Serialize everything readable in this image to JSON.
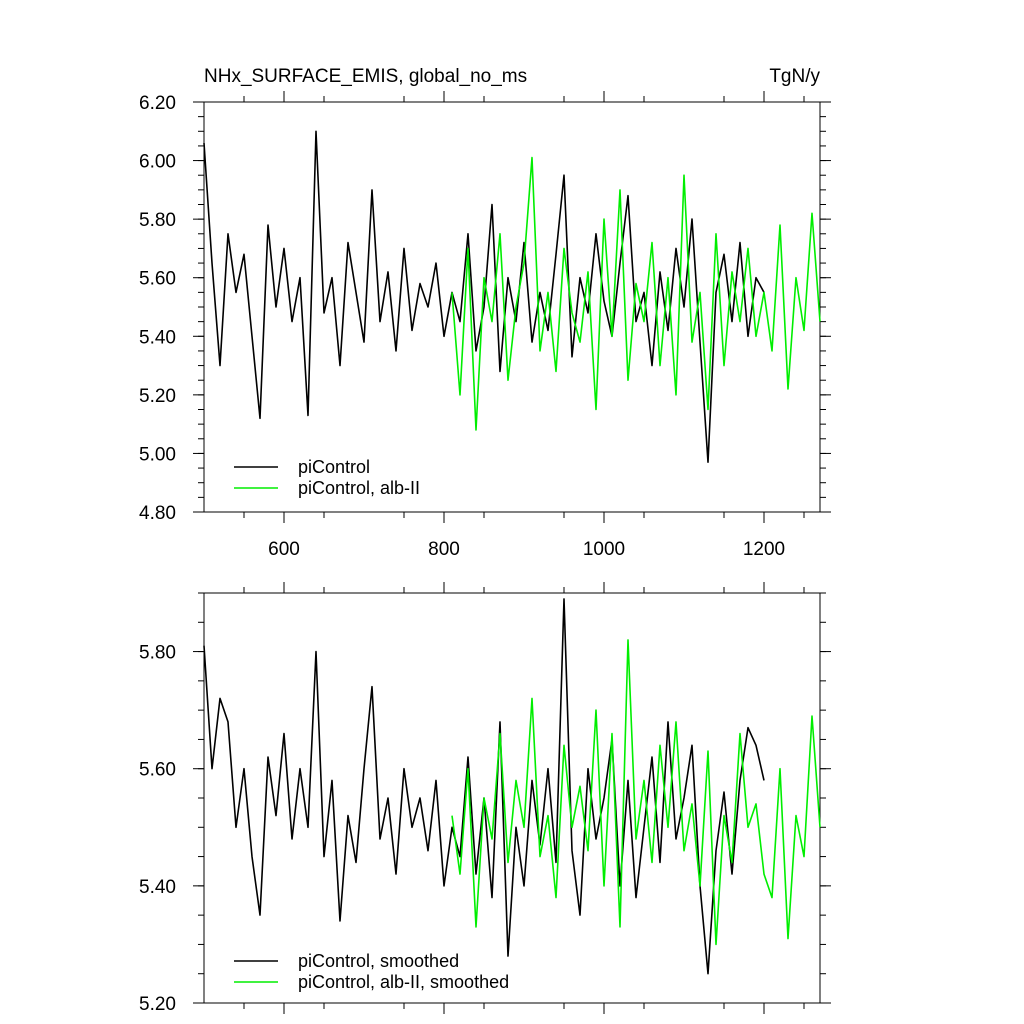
{
  "figure": {
    "title_left": "NHx_SURFACE_EMIS, global_no_ms",
    "title_right": "TgN/y"
  },
  "colors": {
    "black": "#000000",
    "green": "#00ee00"
  },
  "chart_data": [
    {
      "type": "line",
      "title": "NHx_SURFACE_EMIS, global_no_ms",
      "units": "TgN/y",
      "xlim": [
        500,
        1270
      ],
      "ylim": [
        4.8,
        6.2
      ],
      "xticks": [
        600,
        800,
        1000,
        1200
      ],
      "xtick_labels": [
        "600",
        "800",
        "1000",
        "1200"
      ],
      "yticks": [
        4.8,
        5.0,
        5.2,
        5.4,
        5.6,
        5.8,
        6.0,
        6.2
      ],
      "ytick_labels": [
        "4.80",
        "5.00",
        "5.20",
        "5.40",
        "5.60",
        "5.80",
        "6.00",
        "6.20"
      ],
      "legend": "bottom-left",
      "series": [
        {
          "name": "piControl",
          "color": "#000000",
          "x": [
            500,
            510,
            520,
            530,
            540,
            550,
            560,
            570,
            580,
            590,
            600,
            610,
            620,
            630,
            640,
            650,
            660,
            670,
            680,
            690,
            700,
            710,
            720,
            730,
            740,
            750,
            760,
            770,
            780,
            790,
            800,
            810,
            820,
            830,
            840,
            850,
            860,
            870,
            880,
            890,
            900,
            910,
            920,
            930,
            940,
            950,
            960,
            970,
            980,
            990,
            1000,
            1010,
            1020,
            1030,
            1040,
            1050,
            1060,
            1070,
            1080,
            1090,
            1100,
            1110,
            1120,
            1130,
            1140,
            1150,
            1160,
            1170,
            1180,
            1190,
            1200
          ],
          "y": [
            6.06,
            5.65,
            5.3,
            5.75,
            5.55,
            5.68,
            5.4,
            5.12,
            5.78,
            5.5,
            5.7,
            5.45,
            5.6,
            5.13,
            6.1,
            5.48,
            5.6,
            5.3,
            5.72,
            5.55,
            5.38,
            5.9,
            5.45,
            5.62,
            5.35,
            5.7,
            5.42,
            5.58,
            5.5,
            5.65,
            5.4,
            5.55,
            5.45,
            5.75,
            5.35,
            5.5,
            5.85,
            5.28,
            5.6,
            5.45,
            5.72,
            5.38,
            5.55,
            5.42,
            5.68,
            5.95,
            5.33,
            5.6,
            5.48,
            5.75,
            5.52,
            5.4,
            5.65,
            5.88,
            5.45,
            5.55,
            5.3,
            5.62,
            5.42,
            5.7,
            5.5,
            5.8,
            5.38,
            4.97,
            5.55,
            5.68,
            5.45,
            5.72,
            5.4,
            5.6,
            5.55
          ]
        },
        {
          "name": "piControl, alb-II",
          "color": "#00ee00",
          "x": [
            810,
            820,
            830,
            840,
            850,
            860,
            870,
            880,
            890,
            900,
            910,
            920,
            930,
            940,
            950,
            960,
            970,
            980,
            990,
            1000,
            1010,
            1020,
            1030,
            1040,
            1050,
            1060,
            1070,
            1080,
            1090,
            1100,
            1110,
            1120,
            1130,
            1140,
            1150,
            1160,
            1170,
            1180,
            1190,
            1200,
            1210,
            1220,
            1230,
            1240,
            1250,
            1260,
            1270
          ],
          "y": [
            5.55,
            5.2,
            5.7,
            5.08,
            5.6,
            5.45,
            5.75,
            5.25,
            5.5,
            5.65,
            6.01,
            5.35,
            5.55,
            5.28,
            5.7,
            5.48,
            5.38,
            5.62,
            5.15,
            5.8,
            5.4,
            5.9,
            5.25,
            5.58,
            5.45,
            5.72,
            5.3,
            5.6,
            5.2,
            5.95,
            5.38,
            5.55,
            5.15,
            5.75,
            5.3,
            5.62,
            5.45,
            5.7,
            5.4,
            5.55,
            5.35,
            5.78,
            5.22,
            5.6,
            5.42,
            5.82,
            5.45
          ]
        }
      ]
    },
    {
      "type": "line",
      "xlim": [
        500,
        1270
      ],
      "ylim": [
        5.2,
        5.9
      ],
      "xticks": [
        600,
        800,
        1000,
        1200
      ],
      "yticks": [
        5.2,
        5.4,
        5.6,
        5.8
      ],
      "ytick_labels": [
        "5.20",
        "5.40",
        "5.60",
        "5.80"
      ],
      "legend": "bottom-left",
      "series": [
        {
          "name": "piControl, smoothed",
          "color": "#000000",
          "x": [
            500,
            510,
            520,
            530,
            540,
            550,
            560,
            570,
            580,
            590,
            600,
            610,
            620,
            630,
            640,
            650,
            660,
            670,
            680,
            690,
            700,
            710,
            720,
            730,
            740,
            750,
            760,
            770,
            780,
            790,
            800,
            810,
            820,
            830,
            840,
            850,
            860,
            870,
            880,
            890,
            900,
            910,
            920,
            930,
            940,
            950,
            960,
            970,
            980,
            990,
            1000,
            1010,
            1020,
            1030,
            1040,
            1050,
            1060,
            1070,
            1080,
            1090,
            1100,
            1110,
            1120,
            1130,
            1140,
            1150,
            1160,
            1170,
            1180,
            1190,
            1200
          ],
          "y": [
            5.81,
            5.6,
            5.72,
            5.68,
            5.5,
            5.6,
            5.45,
            5.35,
            5.62,
            5.52,
            5.66,
            5.48,
            5.6,
            5.5,
            5.8,
            5.45,
            5.58,
            5.34,
            5.52,
            5.44,
            5.6,
            5.74,
            5.48,
            5.55,
            5.42,
            5.6,
            5.5,
            5.55,
            5.46,
            5.58,
            5.4,
            5.5,
            5.45,
            5.62,
            5.42,
            5.55,
            5.38,
            5.68,
            5.28,
            5.5,
            5.4,
            5.58,
            5.47,
            5.6,
            5.44,
            5.89,
            5.46,
            5.35,
            5.6,
            5.48,
            5.55,
            5.65,
            5.4,
            5.58,
            5.38,
            5.5,
            5.62,
            5.44,
            5.68,
            5.48,
            5.55,
            5.64,
            5.4,
            5.25,
            5.46,
            5.56,
            5.42,
            5.58,
            5.67,
            5.64,
            5.58
          ]
        },
        {
          "name": "piControl, alb-II, smoothed",
          "color": "#00ee00",
          "x": [
            810,
            820,
            830,
            840,
            850,
            860,
            870,
            880,
            890,
            900,
            910,
            920,
            930,
            940,
            950,
            960,
            970,
            980,
            990,
            1000,
            1010,
            1020,
            1030,
            1040,
            1050,
            1060,
            1070,
            1080,
            1090,
            1100,
            1110,
            1120,
            1130,
            1140,
            1150,
            1160,
            1170,
            1180,
            1190,
            1200,
            1210,
            1220,
            1230,
            1240,
            1250,
            1260,
            1270
          ],
          "y": [
            5.52,
            5.42,
            5.6,
            5.33,
            5.55,
            5.48,
            5.66,
            5.44,
            5.58,
            5.5,
            5.72,
            5.45,
            5.52,
            5.38,
            5.64,
            5.5,
            5.57,
            5.46,
            5.7,
            5.4,
            5.66,
            5.33,
            5.82,
            5.48,
            5.58,
            5.44,
            5.64,
            5.5,
            5.68,
            5.46,
            5.54,
            5.4,
            5.63,
            5.3,
            5.52,
            5.44,
            5.66,
            5.5,
            5.54,
            5.42,
            5.38,
            5.6,
            5.31,
            5.52,
            5.45,
            5.69,
            5.5
          ]
        }
      ]
    }
  ]
}
